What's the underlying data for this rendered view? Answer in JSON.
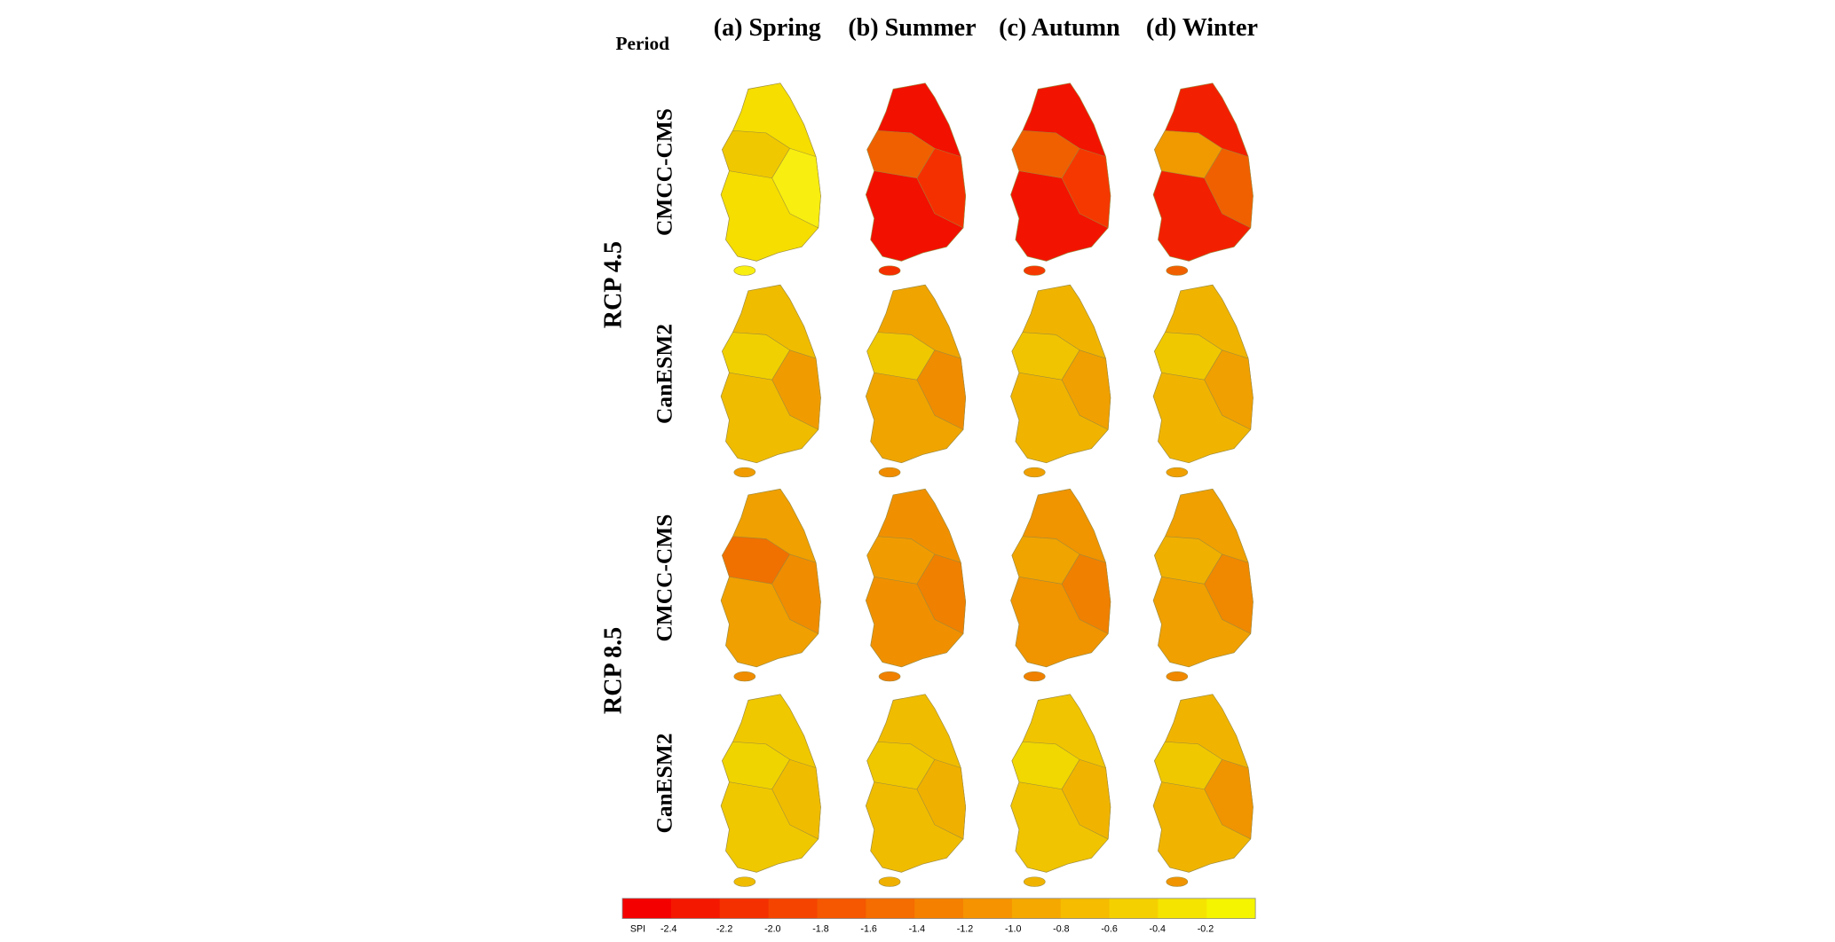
{
  "header": {
    "period_label": "Period",
    "columns": [
      "(a) Spring",
      "(b) Summer",
      "(c) Autumn",
      "(d) Winter"
    ]
  },
  "rows": [
    {
      "scenario": "RCP 4.5",
      "models": [
        "CMCC-CMS",
        "CanESM2"
      ]
    },
    {
      "scenario": "RCP 8.5",
      "models": [
        "CMCC-CMS",
        "CanESM2"
      ]
    }
  ],
  "colorbar": {
    "title": "SPI",
    "labels": [
      "-2.4",
      "-2.2",
      "-2.0",
      "-1.8",
      "-1.6",
      "-1.4",
      "-1.2",
      "-1.0",
      "-0.8",
      "-0.6",
      "-0.4",
      "-0.2"
    ]
  }
}
